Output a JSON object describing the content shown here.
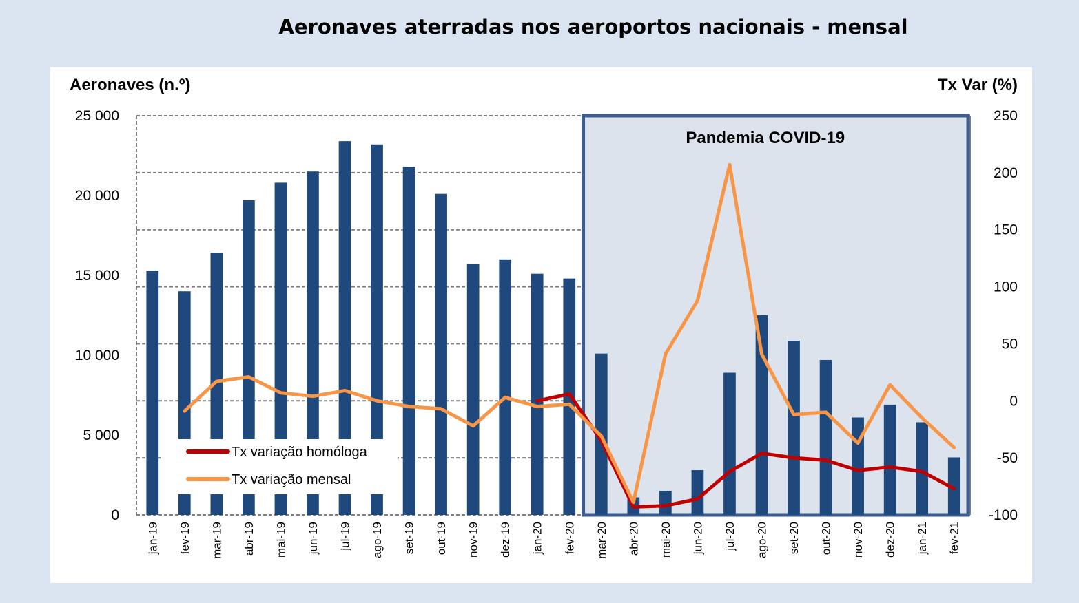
{
  "title": "Aeronaves aterradas nos aeroportos nacionais - mensal",
  "chart_data": {
    "type": "bar+line",
    "title": "Aeronaves aterradas nos aeroportos nacionais - mensal",
    "ylabel_left": "Aeronaves (n.º)",
    "ylabel_right": "Tx Var (%)",
    "ylim_left": [
      0,
      25000
    ],
    "ylim_right": [
      -100,
      250
    ],
    "left_ticks": [
      "25 000",
      "20 000",
      "15 000",
      "10 000",
      "5 000",
      "0"
    ],
    "left_tick_values": [
      25000,
      20000,
      15000,
      10000,
      5000,
      0
    ],
    "right_ticks": [
      "250",
      "200",
      "150",
      "100",
      "50",
      "0",
      "-50",
      "-100"
    ],
    "right_tick_values": [
      250,
      200,
      150,
      100,
      50,
      0,
      -50,
      -100
    ],
    "categories": [
      "jan-19",
      "fev-19",
      "mar-19",
      "abr-19",
      "mai-19",
      "jun-19",
      "jul-19",
      "ago-19",
      "set-19",
      "out-19",
      "nov-19",
      "dez-19",
      "jan-20",
      "fev-20",
      "mar-20",
      "abr-20",
      "mai-20",
      "jun-20",
      "jul-20",
      "ago-20",
      "set-20",
      "out-20",
      "nov-20",
      "dez-20",
      "jan-21",
      "fev-21"
    ],
    "bars": {
      "color": "#1f497d",
      "values": [
        15300,
        14000,
        16400,
        19700,
        20800,
        21500,
        23400,
        23200,
        21800,
        20100,
        15700,
        16000,
        15100,
        14800,
        10100,
        1100,
        1500,
        2800,
        8900,
        12500,
        10900,
        9700,
        6100,
        6900,
        5800,
        3600
      ]
    },
    "series": [
      {
        "name": "Tx variação homóloga",
        "color": "#c00000",
        "values": [
          null,
          null,
          null,
          null,
          null,
          null,
          null,
          null,
          null,
          null,
          null,
          null,
          0,
          6,
          -35,
          -93,
          -92,
          -86,
          -62,
          -46,
          -50,
          -52,
          -61,
          -58,
          -62,
          -77
        ]
      },
      {
        "name": "Tx variação mensal",
        "color": "#f79646",
        "values": [
          null,
          -9,
          17,
          21,
          7,
          4,
          9,
          0,
          -5,
          -7,
          -22,
          3,
          -5,
          -3,
          -31,
          -89,
          41,
          88,
          207,
          41,
          -12,
          -10,
          -37,
          14,
          -15,
          -41
        ]
      }
    ],
    "annotation": "Pandemia COVID-19",
    "annotation_range": [
      "mar-20",
      "fev-21"
    ],
    "grid": true,
    "legend_position": "lower-left"
  }
}
